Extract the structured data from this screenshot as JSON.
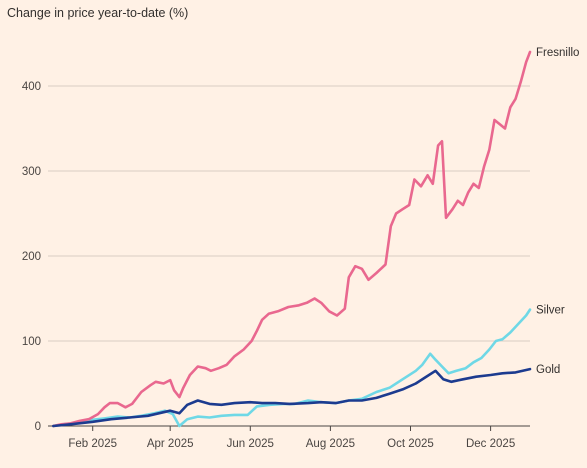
{
  "chart_data": {
    "type": "line",
    "title": "",
    "subtitle": "Change in price year-to-date (%)",
    "xlabel": "",
    "ylabel": "",
    "ylim": [
      0,
      440
    ],
    "xlim": [
      "2025-01-01",
      "2025-12-31"
    ],
    "y_ticks": [
      0,
      100,
      200,
      300,
      400
    ],
    "x_ticks": [
      {
        "label": "Feb 2025",
        "date": "2025-02-01"
      },
      {
        "label": "Apr 2025",
        "date": "2025-04-01"
      },
      {
        "label": "Jun 2025",
        "date": "2025-06-01"
      },
      {
        "label": "Aug 2025",
        "date": "2025-08-01"
      },
      {
        "label": "Oct 2025",
        "date": "2025-10-01"
      },
      {
        "label": "Dec 2025",
        "date": "2025-12-01"
      }
    ],
    "grid": "horizontal",
    "legend": "direct-labels-right",
    "series": [
      {
        "name": "Fresnillo",
        "color": "#e9688f",
        "points": [
          [
            "2025-01-02",
            0
          ],
          [
            "2025-01-08",
            2
          ],
          [
            "2025-01-15",
            3
          ],
          [
            "2025-01-22",
            6
          ],
          [
            "2025-01-29",
            8
          ],
          [
            "2025-02-05",
            14
          ],
          [
            "2025-02-10",
            22
          ],
          [
            "2025-02-14",
            27
          ],
          [
            "2025-02-20",
            27
          ],
          [
            "2025-02-26",
            22
          ],
          [
            "2025-03-03",
            26
          ],
          [
            "2025-03-10",
            40
          ],
          [
            "2025-03-17",
            48
          ],
          [
            "2025-03-21",
            52
          ],
          [
            "2025-03-27",
            50
          ],
          [
            "2025-04-01",
            54
          ],
          [
            "2025-04-04",
            42
          ],
          [
            "2025-04-08",
            34
          ],
          [
            "2025-04-11",
            45
          ],
          [
            "2025-04-16",
            60
          ],
          [
            "2025-04-22",
            70
          ],
          [
            "2025-04-28",
            68
          ],
          [
            "2025-05-02",
            65
          ],
          [
            "2025-05-08",
            68
          ],
          [
            "2025-05-14",
            72
          ],
          [
            "2025-05-20",
            82
          ],
          [
            "2025-05-27",
            90
          ],
          [
            "2025-06-02",
            100
          ],
          [
            "2025-06-06",
            112
          ],
          [
            "2025-06-10",
            125
          ],
          [
            "2025-06-15",
            132
          ],
          [
            "2025-06-22",
            135
          ],
          [
            "2025-06-30",
            140
          ],
          [
            "2025-07-08",
            142
          ],
          [
            "2025-07-14",
            145
          ],
          [
            "2025-07-20",
            150
          ],
          [
            "2025-07-25",
            145
          ],
          [
            "2025-07-31",
            135
          ],
          [
            "2025-08-06",
            130
          ],
          [
            "2025-08-12",
            138
          ],
          [
            "2025-08-15",
            175
          ],
          [
            "2025-08-20",
            188
          ],
          [
            "2025-08-25",
            185
          ],
          [
            "2025-08-30",
            172
          ],
          [
            "2025-09-05",
            180
          ],
          [
            "2025-09-12",
            190
          ],
          [
            "2025-09-16",
            235
          ],
          [
            "2025-09-20",
            250
          ],
          [
            "2025-09-25",
            255
          ],
          [
            "2025-09-30",
            260
          ],
          [
            "2025-10-04",
            290
          ],
          [
            "2025-10-09",
            282
          ],
          [
            "2025-10-14",
            295
          ],
          [
            "2025-10-18",
            285
          ],
          [
            "2025-10-22",
            330
          ],
          [
            "2025-10-25",
            335
          ],
          [
            "2025-10-28",
            245
          ],
          [
            "2025-11-02",
            255
          ],
          [
            "2025-11-06",
            265
          ],
          [
            "2025-11-10",
            260
          ],
          [
            "2025-11-14",
            275
          ],
          [
            "2025-11-18",
            285
          ],
          [
            "2025-11-22",
            280
          ],
          [
            "2025-11-26",
            305
          ],
          [
            "2025-11-30",
            325
          ],
          [
            "2025-12-04",
            360
          ],
          [
            "2025-12-08",
            355
          ],
          [
            "2025-12-12",
            350
          ],
          [
            "2025-12-16",
            375
          ],
          [
            "2025-12-20",
            385
          ],
          [
            "2025-12-24",
            405
          ],
          [
            "2025-12-28",
            428
          ],
          [
            "2025-12-31",
            440
          ]
        ]
      },
      {
        "name": "Silver",
        "color": "#6fd8e6",
        "points": [
          [
            "2025-01-02",
            0
          ],
          [
            "2025-01-10",
            2
          ],
          [
            "2025-01-20",
            4
          ],
          [
            "2025-01-30",
            7
          ],
          [
            "2025-02-10",
            9
          ],
          [
            "2025-02-20",
            11
          ],
          [
            "2025-03-01",
            10
          ],
          [
            "2025-03-10",
            12
          ],
          [
            "2025-03-20",
            15
          ],
          [
            "2025-03-28",
            18
          ],
          [
            "2025-04-03",
            14
          ],
          [
            "2025-04-08",
            0
          ],
          [
            "2025-04-14",
            8
          ],
          [
            "2025-04-22",
            11
          ],
          [
            "2025-05-01",
            10
          ],
          [
            "2025-05-10",
            12
          ],
          [
            "2025-05-20",
            13
          ],
          [
            "2025-05-30",
            13
          ],
          [
            "2025-06-06",
            23
          ],
          [
            "2025-06-16",
            25
          ],
          [
            "2025-06-26",
            26
          ],
          [
            "2025-07-05",
            26
          ],
          [
            "2025-07-15",
            30
          ],
          [
            "2025-07-25",
            28
          ],
          [
            "2025-08-05",
            27
          ],
          [
            "2025-08-15",
            30
          ],
          [
            "2025-08-25",
            32
          ],
          [
            "2025-09-05",
            40
          ],
          [
            "2025-09-15",
            45
          ],
          [
            "2025-09-25",
            55
          ],
          [
            "2025-10-05",
            65
          ],
          [
            "2025-10-10",
            72
          ],
          [
            "2025-10-16",
            85
          ],
          [
            "2025-10-20",
            78
          ],
          [
            "2025-10-25",
            70
          ],
          [
            "2025-10-30",
            62
          ],
          [
            "2025-11-05",
            65
          ],
          [
            "2025-11-12",
            68
          ],
          [
            "2025-11-18",
            75
          ],
          [
            "2025-11-24",
            80
          ],
          [
            "2025-11-30",
            90
          ],
          [
            "2025-12-05",
            100
          ],
          [
            "2025-12-10",
            102
          ],
          [
            "2025-12-16",
            110
          ],
          [
            "2025-12-22",
            120
          ],
          [
            "2025-12-28",
            130
          ],
          [
            "2025-12-31",
            137
          ]
        ]
      },
      {
        "name": "Gold",
        "color": "#1c3b8f",
        "points": [
          [
            "2025-01-02",
            0
          ],
          [
            "2025-01-15",
            2
          ],
          [
            "2025-02-01",
            5
          ],
          [
            "2025-02-15",
            8
          ],
          [
            "2025-03-01",
            10
          ],
          [
            "2025-03-15",
            12
          ],
          [
            "2025-04-01",
            18
          ],
          [
            "2025-04-08",
            15
          ],
          [
            "2025-04-14",
            25
          ],
          [
            "2025-04-22",
            30
          ],
          [
            "2025-05-01",
            26
          ],
          [
            "2025-05-10",
            25
          ],
          [
            "2025-05-20",
            27
          ],
          [
            "2025-06-01",
            28
          ],
          [
            "2025-06-10",
            27
          ],
          [
            "2025-06-20",
            27
          ],
          [
            "2025-07-01",
            26
          ],
          [
            "2025-07-15",
            27
          ],
          [
            "2025-07-25",
            28
          ],
          [
            "2025-08-05",
            27
          ],
          [
            "2025-08-15",
            30
          ],
          [
            "2025-08-25",
            30
          ],
          [
            "2025-09-05",
            33
          ],
          [
            "2025-09-15",
            38
          ],
          [
            "2025-09-25",
            43
          ],
          [
            "2025-10-05",
            50
          ],
          [
            "2025-10-12",
            57
          ],
          [
            "2025-10-20",
            65
          ],
          [
            "2025-10-26",
            55
          ],
          [
            "2025-11-01",
            52
          ],
          [
            "2025-11-10",
            55
          ],
          [
            "2025-11-20",
            58
          ],
          [
            "2025-12-01",
            60
          ],
          [
            "2025-12-10",
            62
          ],
          [
            "2025-12-20",
            63
          ],
          [
            "2025-12-31",
            67
          ]
        ]
      }
    ]
  }
}
